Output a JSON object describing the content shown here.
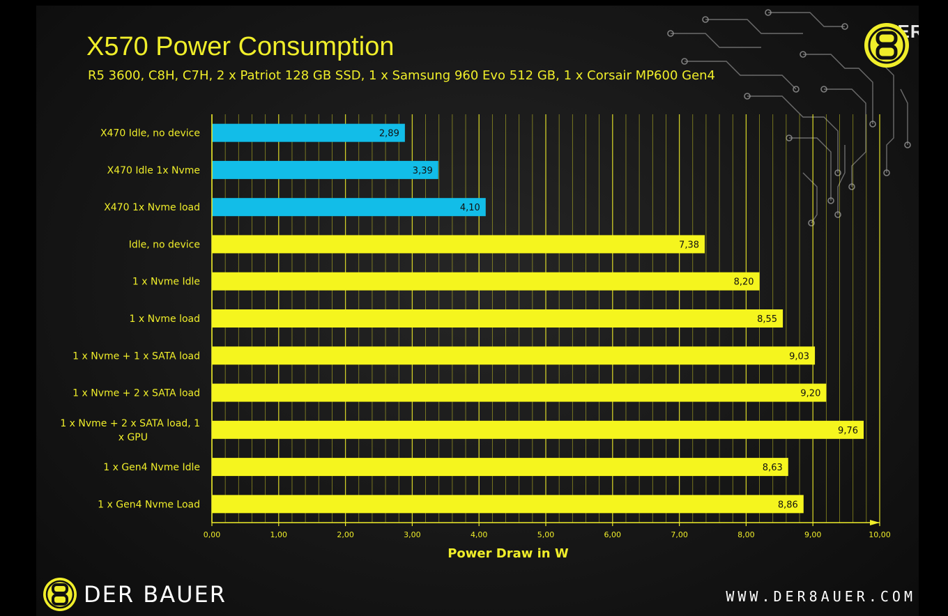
{
  "header": {
    "title": "X570 Power Consumption",
    "subtitle": "R5 3600, C8H, C7H, 2 x Patriot 128 GB SSD, 1 x Samsung 960 Evo 512 GB, 1 x Corsair MP600 Gen4"
  },
  "branding": {
    "watermark": "WERBEY",
    "brand_name": "DER BAUER",
    "website": "WWW.DER8AUER.COM",
    "logo_icon": "der8auer-8-logo-icon"
  },
  "colors": {
    "background": "#1b1b1b",
    "accent_yellow": "#f0ee2a",
    "bar_yellow": "#f5f51e",
    "bar_blue": "#12bde8",
    "axis_text": "#f0ee2a"
  },
  "chart_data": {
    "type": "bar",
    "orientation": "horizontal",
    "title": "X570 Power Consumption",
    "subtitle": "R5 3600, C8H, C7H, 2 x Patriot 128 GB SSD, 1 x Samsung 960 Evo 512 GB, 1 x Corsair MP600 Gen4",
    "categories": [
      "X470 Idle, no device",
      "X470 Idle 1x Nvme",
      "X470 1x Nvme load",
      "Idle, no device",
      "1 x Nvme Idle",
      "1 x Nvme load",
      "1 x Nvme + 1 x SATA load",
      "1 x Nvme + 2 x SATA load",
      "1 x Nvme + 2 x SATA load, 1 x GPU",
      "1 x Gen4 Nvme Idle",
      "1 x Gen4 Nvme Load"
    ],
    "values": [
      2.89,
      3.39,
      4.1,
      7.38,
      8.2,
      8.55,
      9.03,
      9.2,
      9.76,
      8.63,
      8.86
    ],
    "value_labels": [
      "2,89",
      "3,39",
      "4,10",
      "7,38",
      "8,20",
      "8,55",
      "9,03",
      "9,20",
      "9,76",
      "8,63",
      "8,86"
    ],
    "bar_colors": [
      "#12bde8",
      "#12bde8",
      "#12bde8",
      "#f5f51e",
      "#f5f51e",
      "#f5f51e",
      "#f5f51e",
      "#f5f51e",
      "#f5f51e",
      "#f5f51e",
      "#f5f51e"
    ],
    "xlabel": "Power Draw in W",
    "ylabel": "",
    "xlim": [
      0,
      10
    ],
    "x_ticks": [
      0,
      1,
      2,
      3,
      4,
      5,
      6,
      7,
      8,
      9,
      10
    ],
    "x_tick_labels": [
      "0,00",
      "1,00",
      "2,00",
      "3,00",
      "4,00",
      "5,00",
      "6,00",
      "7,00",
      "8,00",
      "9,00",
      "10,00"
    ],
    "grid": true,
    "legend": "none"
  }
}
